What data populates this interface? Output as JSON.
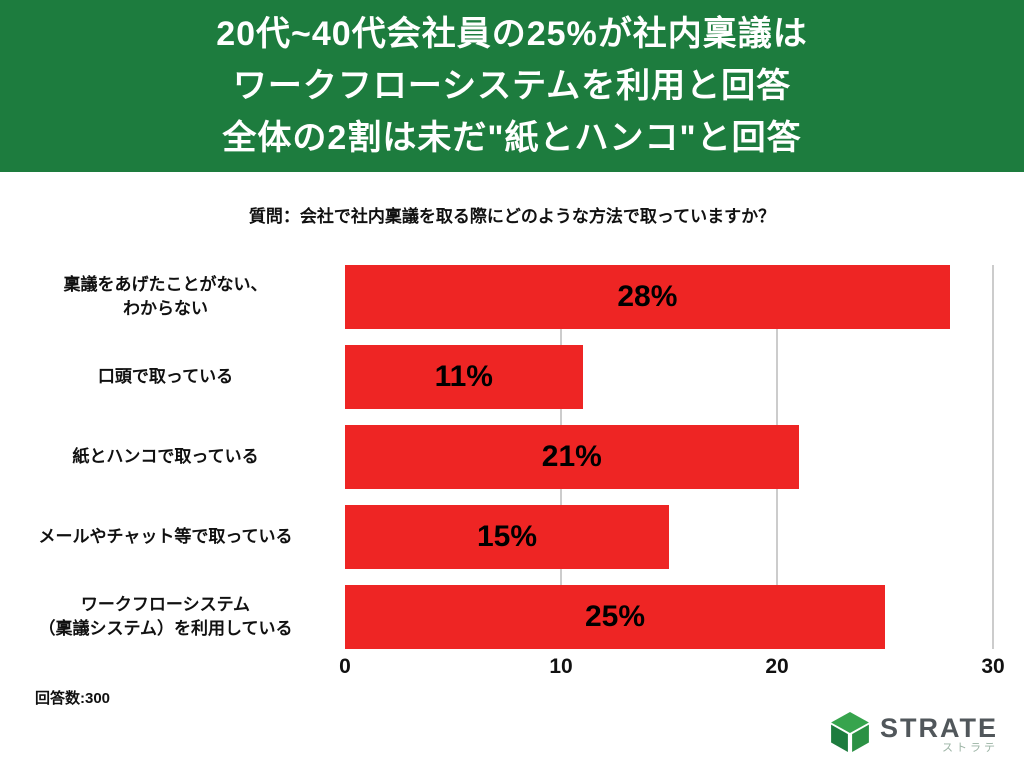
{
  "header": {
    "lines": [
      "20代~40代会社員の25%が社内稟議は",
      "ワークフローシステムを利用と回答",
      "全体の2割は未だ\"紙とハンコ\"と回答"
    ],
    "bg_color": "#1d7c3e",
    "text_color": "#ffffff"
  },
  "question": "質問：会社で社内稟議を取る際にどのような方法で取っていますか？",
  "chart_data": {
    "type": "bar",
    "orientation": "horizontal",
    "title": "",
    "categories": [
      "稟議をあげたことがない、\nわからない",
      "口頭で取っている",
      "紙とハンコで取っている",
      "メールやチャット等で取っている",
      "ワークフローシステム\n（稟議システム）を利用している"
    ],
    "values": [
      28,
      11,
      21,
      15,
      25
    ],
    "value_labels": [
      "28%",
      "11%",
      "21%",
      "15%",
      "25%"
    ],
    "xlim": [
      0,
      30
    ],
    "x_ticks": [
      0,
      10,
      20,
      30
    ],
    "bar_color": "#ee2524",
    "grid": true,
    "legend": false
  },
  "footer": {
    "sample_size": "回答数:300"
  },
  "logo": {
    "name": "STRATE",
    "subtext": "ストラテ",
    "icon_colors": [
      "#36a44d",
      "#1d7c3e",
      "#2b9144"
    ]
  }
}
